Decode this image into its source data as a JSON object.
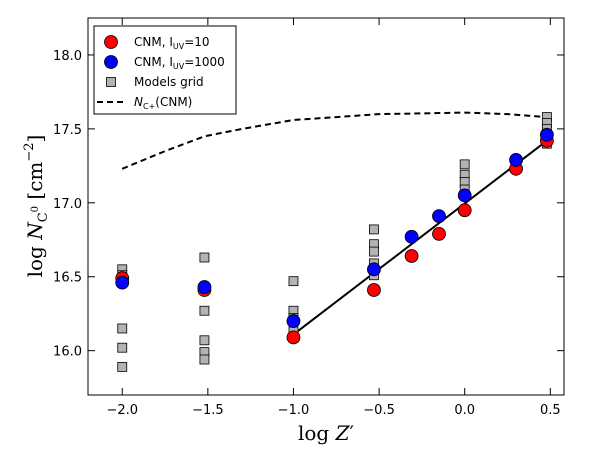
{
  "chart_data": {
    "type": "scatter",
    "xlabel": "log Z′",
    "ylabel": "log N_C0 [cm^-2]",
    "xlim": [
      -2.2,
      0.58
    ],
    "ylim": [
      15.7,
      18.25
    ],
    "xticks": [
      -2.0,
      -1.5,
      -1.0,
      -0.5,
      0.0,
      0.5
    ],
    "xtick_labels": [
      "−2.0",
      "−1.5",
      "−1.0",
      "−0.5",
      "0.0",
      "0.5"
    ],
    "yticks": [
      16.0,
      16.5,
      17.0,
      17.5,
      18.0
    ],
    "ytick_labels": [
      "16.0",
      "16.5",
      "17.0",
      "17.5",
      "18.0"
    ],
    "grid": false,
    "legend_position": "top-left",
    "series": [
      {
        "name": "Models grid",
        "kind": "square-marker",
        "color": "#b3b3b3",
        "points": [
          [
            -2.0,
            16.55
          ],
          [
            -2.0,
            16.51
          ],
          [
            -2.0,
            16.47
          ],
          [
            -2.0,
            16.15
          ],
          [
            -2.0,
            16.02
          ],
          [
            -2.0,
            15.89
          ],
          [
            -1.52,
            16.63
          ],
          [
            -1.52,
            16.43
          ],
          [
            -1.52,
            16.27
          ],
          [
            -1.52,
            16.07
          ],
          [
            -1.52,
            15.99
          ],
          [
            -1.52,
            15.94
          ],
          [
            -1.0,
            16.47
          ],
          [
            -1.0,
            16.27
          ],
          [
            -1.0,
            16.22
          ],
          [
            -1.0,
            16.13
          ],
          [
            -0.53,
            16.82
          ],
          [
            -0.53,
            16.72
          ],
          [
            -0.53,
            16.67
          ],
          [
            -0.53,
            16.59
          ],
          [
            -0.53,
            16.55
          ],
          [
            -0.53,
            16.51
          ],
          [
            0.0,
            17.26
          ],
          [
            0.0,
            17.19
          ],
          [
            0.0,
            17.14
          ],
          [
            0.0,
            17.09
          ],
          [
            0.0,
            17.05
          ],
          [
            0.48,
            17.58
          ],
          [
            0.48,
            17.54
          ],
          [
            0.48,
            17.5
          ],
          [
            0.48,
            17.46
          ],
          [
            0.48,
            17.43
          ],
          [
            0.48,
            17.4
          ]
        ]
      },
      {
        "name": "CNM, I_UV=10",
        "kind": "circle-marker",
        "color": "#ff0000",
        "points": [
          [
            -2.0,
            16.49
          ],
          [
            -1.52,
            16.41
          ],
          [
            -1.0,
            16.09
          ],
          [
            -0.53,
            16.41
          ],
          [
            -0.31,
            16.64
          ],
          [
            -0.15,
            16.79
          ],
          [
            0.0,
            16.95
          ],
          [
            0.3,
            17.23
          ],
          [
            0.48,
            17.42
          ]
        ]
      },
      {
        "name": "CNM, I_UV=1000",
        "kind": "circle-marker",
        "color": "#0000ff",
        "points": [
          [
            -2.0,
            16.46
          ],
          [
            -1.52,
            16.43
          ],
          [
            -1.0,
            16.2
          ],
          [
            -0.53,
            16.55
          ],
          [
            -0.31,
            16.77
          ],
          [
            -0.15,
            16.91
          ],
          [
            0.0,
            17.05
          ],
          [
            0.3,
            17.29
          ],
          [
            0.48,
            17.46
          ]
        ]
      },
      {
        "name": "N_C+(CNM)",
        "kind": "dashed-line",
        "color": "#000000",
        "points": [
          [
            -2.0,
            17.23
          ],
          [
            -1.75,
            17.35
          ],
          [
            -1.52,
            17.45
          ],
          [
            -1.3,
            17.5
          ],
          [
            -1.0,
            17.56
          ],
          [
            -0.75,
            17.58
          ],
          [
            -0.5,
            17.6
          ],
          [
            -0.25,
            17.605
          ],
          [
            0.0,
            17.61
          ],
          [
            0.25,
            17.6
          ],
          [
            0.48,
            17.58
          ]
        ]
      },
      {
        "kind": "solid-line",
        "color": "#000000",
        "points": [
          [
            -1.0,
            16.11
          ],
          [
            0.48,
            17.42
          ]
        ]
      }
    ]
  },
  "legend": [
    {
      "marker": "circle",
      "color": "#ff0000",
      "label_main": "CNM, I",
      "label_sub": "UV",
      "label_tail": "=10"
    },
    {
      "marker": "circle",
      "color": "#0000ff",
      "label_main": "CNM, I",
      "label_sub": "UV",
      "label_tail": "=1000"
    },
    {
      "marker": "square",
      "color": "#b3b3b3",
      "label_main": "Models grid",
      "label_sub": "",
      "label_tail": ""
    },
    {
      "marker": "dash",
      "color": "#000000",
      "label_main": "N",
      "label_sub": "C+",
      "label_tail": "(CNM)"
    }
  ]
}
